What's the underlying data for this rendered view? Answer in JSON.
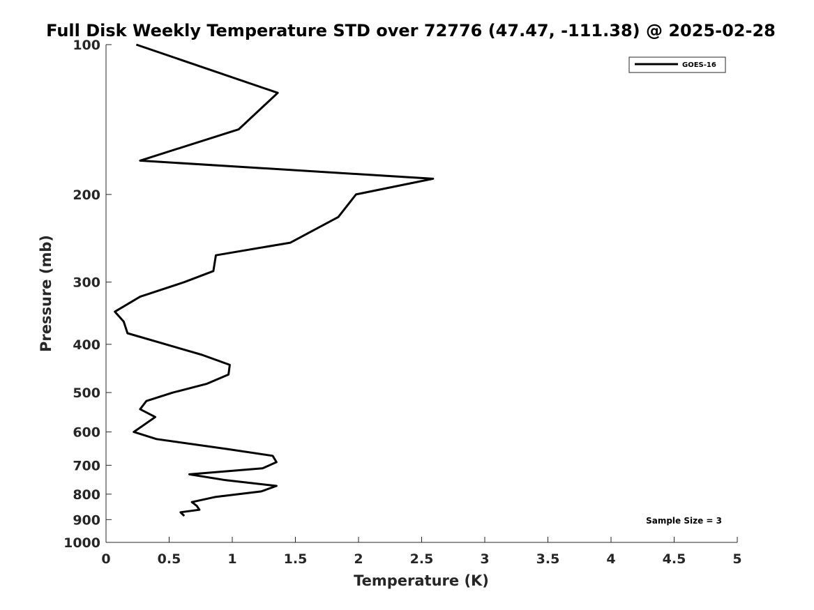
{
  "chart_data": {
    "type": "line",
    "title": "Full Disk Weekly Temperature STD over 72776 (47.47, -111.38) @ 2025-02-28",
    "xlabel": "Temperature (K)",
    "ylabel": "Pressure (mb)",
    "xlim": [
      0,
      5
    ],
    "ylim": [
      100,
      1000
    ],
    "y_scale": "log",
    "y_reversed": true,
    "x_ticks": [
      0,
      0.5,
      1,
      1.5,
      2,
      2.5,
      3,
      3.5,
      4,
      4.5,
      5
    ],
    "x_tick_labels": [
      "0",
      "0.5",
      "1",
      "1.5",
      "2",
      "2.5",
      "3",
      "3.5",
      "4",
      "4.5",
      "5"
    ],
    "y_ticks": [
      100,
      200,
      300,
      400,
      500,
      600,
      700,
      800,
      900,
      1000
    ],
    "y_tick_labels": [
      "100",
      "200",
      "300",
      "400",
      "500",
      "600",
      "700",
      "800",
      "900",
      "1000"
    ],
    "grid": false,
    "legend_position": "top-right",
    "annotation": "Sample Size = 3",
    "series": [
      {
        "name": "GOES-16",
        "color": "#000000",
        "points": [
          [
            0.24,
            100
          ],
          [
            1.36,
            125
          ],
          [
            1.05,
            148
          ],
          [
            0.27,
            171
          ],
          [
            2.59,
            186
          ],
          [
            1.98,
            200
          ],
          [
            1.84,
            222
          ],
          [
            1.46,
            250
          ],
          [
            0.87,
            265
          ],
          [
            0.85,
            285
          ],
          [
            0.62,
            300
          ],
          [
            0.27,
            321
          ],
          [
            0.07,
            344
          ],
          [
            0.14,
            360
          ],
          [
            0.17,
            380
          ],
          [
            0.76,
            420
          ],
          [
            0.98,
            440
          ],
          [
            0.97,
            460
          ],
          [
            0.8,
            480
          ],
          [
            0.53,
            500
          ],
          [
            0.32,
            520
          ],
          [
            0.27,
            540
          ],
          [
            0.39,
            560
          ],
          [
            0.22,
            600
          ],
          [
            0.4,
            620
          ],
          [
            0.97,
            650
          ],
          [
            1.32,
            670
          ],
          [
            1.35,
            690
          ],
          [
            1.24,
            710
          ],
          [
            0.66,
            730
          ],
          [
            0.95,
            750
          ],
          [
            1.35,
            770
          ],
          [
            1.23,
            790
          ],
          [
            0.87,
            810
          ],
          [
            0.68,
            830
          ],
          [
            0.72,
            845
          ],
          [
            0.74,
            860
          ],
          [
            0.59,
            870
          ],
          [
            0.62,
            885
          ]
        ]
      }
    ]
  }
}
